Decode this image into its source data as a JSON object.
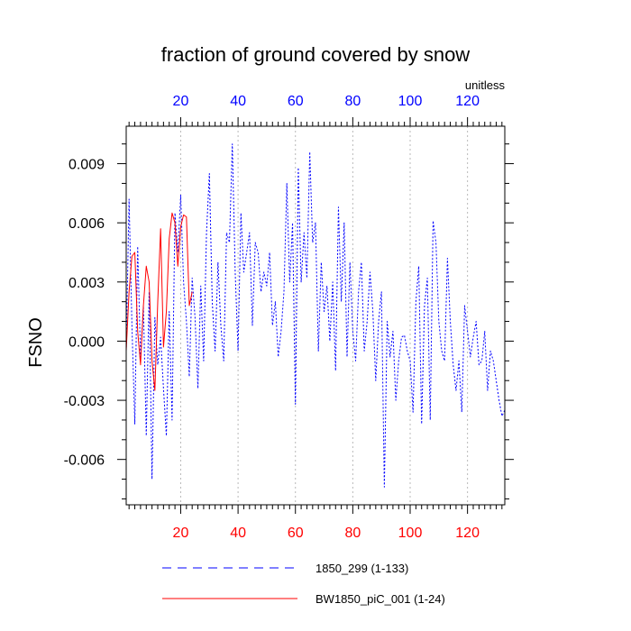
{
  "chart_data": {
    "type": "line",
    "title": "fraction of ground covered by snow",
    "ylabel": "FSNO",
    "units_label": "unitless",
    "xlim": [
      1,
      133
    ],
    "ylim": [
      -0.0083,
      0.0109
    ],
    "x_ticks": [
      20,
      40,
      60,
      80,
      100,
      120
    ],
    "x_tick_labels": [
      "20",
      "40",
      "60",
      "80",
      "100",
      "120"
    ],
    "y_ticks": [
      -0.006,
      -0.003,
      0.0,
      0.003,
      0.006,
      0.009
    ],
    "y_tick_labels": [
      "-0.006",
      "-0.003",
      "0.000",
      "0.003",
      "0.006",
      "0.009"
    ],
    "bottom_tick_color": "#ff0000",
    "top_tick_color": "#0000ff",
    "grid": "vertical dotted",
    "series": [
      {
        "name": "1850_299 (1-133)",
        "color": "#0000ff",
        "style": "dashed",
        "x": [
          1,
          2,
          3,
          4,
          5,
          6,
          7,
          8,
          9,
          10,
          11,
          12,
          13,
          14,
          15,
          16,
          17,
          18,
          19,
          20,
          21,
          22,
          23,
          24,
          25,
          26,
          27,
          28,
          29,
          30,
          31,
          32,
          33,
          34,
          35,
          36,
          37,
          38,
          39,
          40,
          41,
          42,
          43,
          44,
          45,
          46,
          47,
          48,
          49,
          50,
          51,
          52,
          53,
          54,
          55,
          56,
          57,
          58,
          59,
          60,
          61,
          62,
          63,
          64,
          65,
          66,
          67,
          68,
          69,
          70,
          71,
          72,
          73,
          74,
          75,
          76,
          77,
          78,
          79,
          80,
          81,
          82,
          83,
          84,
          85,
          86,
          87,
          88,
          89,
          90,
          91,
          92,
          93,
          94,
          95,
          96,
          97,
          98,
          99,
          100,
          101,
          102,
          103,
          104,
          105,
          106,
          107,
          108,
          109,
          110,
          111,
          112,
          113,
          114,
          115,
          116,
          117,
          118,
          119,
          120,
          121,
          122,
          123,
          124,
          125,
          126,
          127,
          128,
          129,
          130,
          131,
          132,
          133
        ],
        "values": [
          -0.0005,
          0.0072,
          0.0008,
          -0.0042,
          0.0048,
          -0.0008,
          0.0018,
          -0.0048,
          0.0025,
          -0.007,
          0.0012,
          -0.0012,
          0.0002,
          -0.0024,
          -0.0048,
          0.0015,
          -0.004,
          0.0065,
          0.0045,
          0.0074,
          0.003,
          0.001,
          -0.0018,
          0.0032,
          0.0012,
          -0.0024,
          0.0028,
          -0.001,
          0.0055,
          0.0085,
          0.002,
          -0.0005,
          0.004,
          0.0008,
          -0.001,
          0.0055,
          0.005,
          0.01,
          0.0035,
          -0.0005,
          0.0065,
          0.0035,
          0.0045,
          0.0055,
          0.0008,
          0.005,
          0.0045,
          0.0025,
          0.0035,
          0.0028,
          0.0045,
          0.0008,
          0.002,
          -0.0008,
          0.0005,
          0.0025,
          0.008,
          0.003,
          0.006,
          -0.0032,
          0.0088,
          0.003,
          0.0055,
          0.0032,
          0.0096,
          0.005,
          0.006,
          -0.0005,
          0.004,
          0.0015,
          0.0028,
          0.0,
          0.003,
          -0.0015,
          0.0068,
          0.002,
          0.006,
          -0.0008,
          0.004,
          0.0005,
          -0.001,
          0.0025,
          0.004,
          -0.0005,
          0.001,
          0.0035,
          0.0015,
          -0.002,
          0.001,
          0.0025,
          -0.0074,
          0.001,
          -0.0008,
          0.0005,
          -0.003,
          -0.001,
          0.0002,
          0.0003,
          -0.0005,
          -0.001,
          -0.0036,
          0.002,
          0.0038,
          -0.0042,
          0.0018,
          0.0032,
          -0.004,
          0.0061,
          0.005,
          0.001,
          -0.0005,
          -0.001,
          0.0042,
          0.001,
          -0.0012,
          -0.0025,
          -0.001,
          -0.0036,
          0.0018,
          0.0005,
          -0.0008,
          0.0002,
          0.001,
          -0.0012,
          -0.001,
          0.0005,
          -0.0025,
          -0.0005,
          -0.001,
          -0.002,
          -0.003,
          -0.0038,
          -0.0035
        ]
      },
      {
        "name": "BW1850_piC_001 (1-24)",
        "color": "#ff0000",
        "style": "solid",
        "x": [
          1,
          2,
          3,
          4,
          5,
          6,
          7,
          8,
          9,
          10,
          11,
          12,
          13,
          14,
          15,
          16,
          17,
          18,
          19,
          20,
          21,
          22,
          23,
          24
        ],
        "values": [
          -0.0005,
          0.0025,
          0.0043,
          0.0045,
          0.0005,
          -0.0012,
          0.0018,
          0.0038,
          0.003,
          -0.001,
          -0.0025,
          0.002,
          0.0057,
          -0.0003,
          0.0015,
          0.0052,
          0.0065,
          0.006,
          0.0038,
          0.0058,
          0.0064,
          0.0063,
          0.0018,
          0.0025
        ]
      }
    ]
  }
}
